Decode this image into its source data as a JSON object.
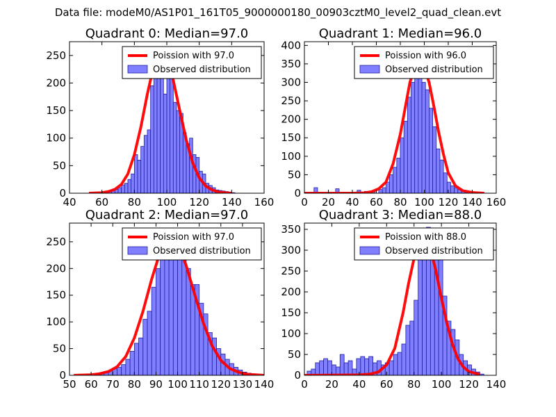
{
  "suptitle": "Data file: modeM0/AS1P01_161T05_9000000180_00903cztM0_level2_quad_clean.evt",
  "colors": {
    "poisson": "#ff0000",
    "bar_fill": "#7f7fff",
    "bar_edge": "#1f1fa0"
  },
  "chart_data": [
    {
      "type": "bar",
      "title": "Quadrant 0: Median=97.0",
      "legend": [
        "Poission with 97.0",
        "Observed distribution"
      ],
      "legend_loc": "upper right",
      "xlim": [
        40,
        160
      ],
      "ylim": [
        0,
        275
      ],
      "xticks": [
        40,
        60,
        80,
        100,
        120,
        140,
        160
      ],
      "yticks": [
        0,
        50,
        100,
        150,
        200,
        250
      ],
      "bin_width": 2,
      "bins_x": [
        60,
        62,
        64,
        66,
        68,
        70,
        72,
        74,
        76,
        78,
        80,
        82,
        84,
        86,
        88,
        90,
        92,
        94,
        96,
        98,
        100,
        102,
        104,
        106,
        108,
        110,
        112,
        114,
        116,
        118,
        120,
        122,
        124,
        126,
        128,
        130,
        132,
        134,
        136,
        138,
        140
      ],
      "bins_y": [
        2,
        2,
        4,
        6,
        7,
        10,
        15,
        18,
        25,
        35,
        70,
        60,
        85,
        105,
        115,
        195,
        230,
        250,
        225,
        180,
        245,
        220,
        165,
        150,
        145,
        110,
        90,
        100,
        70,
        65,
        40,
        35,
        18,
        14,
        10,
        6,
        5,
        4,
        3,
        2,
        1
      ],
      "poisson_mean": 97.0,
      "poisson_x": [
        52,
        60,
        64,
        68,
        72,
        76,
        80,
        84,
        88,
        92,
        96,
        100,
        104,
        108,
        112,
        116,
        120,
        124,
        128,
        132,
        136,
        140
      ],
      "poisson_y": [
        0,
        1,
        3,
        7,
        16,
        35,
        70,
        120,
        180,
        232,
        260,
        248,
        205,
        150,
        97,
        55,
        28,
        13,
        6,
        2,
        1,
        0
      ]
    },
    {
      "type": "bar",
      "title": "Quadrant 1: Median=96.0",
      "legend": [
        "Poission with 96.0",
        "Observed distribution"
      ],
      "legend_loc": "upper right",
      "xlim": [
        0,
        160
      ],
      "ylim": [
        0,
        410
      ],
      "xticks": [
        0,
        20,
        40,
        60,
        80,
        100,
        120,
        140,
        160
      ],
      "yticks": [
        0,
        50,
        100,
        150,
        200,
        250,
        300,
        350,
        400
      ],
      "bin_width": 3,
      "bins_x": [
        8,
        26,
        44,
        50,
        56,
        62,
        65,
        68,
        71,
        74,
        77,
        80,
        83,
        86,
        89,
        92,
        95,
        98,
        101,
        104,
        107,
        110,
        113,
        116,
        119,
        122,
        125,
        128,
        131,
        134,
        137
      ],
      "bins_y": [
        15,
        12,
        8,
        5,
        5,
        10,
        15,
        30,
        50,
        70,
        95,
        150,
        195,
        260,
        300,
        350,
        320,
        300,
        280,
        230,
        180,
        120,
        90,
        55,
        30,
        20,
        15,
        10,
        5,
        3,
        2
      ],
      "poisson_mean": 96.0,
      "poisson_x": [
        0,
        40,
        50,
        56,
        62,
        68,
        74,
        80,
        84,
        88,
        92,
        96,
        100,
        104,
        108,
        112,
        116,
        120,
        126,
        132,
        140,
        150
      ],
      "poisson_y": [
        0,
        0,
        1,
        4,
        12,
        30,
        80,
        160,
        230,
        300,
        340,
        355,
        340,
        300,
        235,
        165,
        105,
        55,
        20,
        7,
        2,
        0
      ]
    },
    {
      "type": "bar",
      "title": "Quadrant 2: Median=97.0",
      "legend": [
        "Poission with 97.0",
        "Observed distribution"
      ],
      "legend_loc": "upper right",
      "xlim": [
        50,
        140
      ],
      "ylim": [
        0,
        285
      ],
      "xticks": [
        50,
        60,
        70,
        80,
        90,
        100,
        110,
        120,
        130,
        140
      ],
      "yticks": [
        0,
        50,
        100,
        150,
        200,
        250
      ],
      "bin_width": 2,
      "bins_x": [
        58,
        62,
        64,
        66,
        68,
        70,
        72,
        74,
        76,
        78,
        80,
        82,
        84,
        86,
        88,
        90,
        92,
        94,
        96,
        98,
        100,
        102,
        104,
        106,
        108,
        110,
        112,
        114,
        116,
        118,
        120,
        122,
        124,
        126,
        128,
        130,
        132,
        134
      ],
      "bins_y": [
        2,
        3,
        5,
        7,
        8,
        12,
        15,
        20,
        30,
        45,
        60,
        70,
        105,
        120,
        165,
        200,
        240,
        265,
        225,
        260,
        240,
        230,
        200,
        170,
        170,
        135,
        115,
        80,
        70,
        50,
        40,
        30,
        22,
        15,
        10,
        6,
        4,
        2
      ],
      "poisson_mean": 97.0,
      "poisson_x": [
        52,
        60,
        64,
        68,
        72,
        76,
        80,
        84,
        88,
        92,
        96,
        100,
        104,
        108,
        112,
        116,
        120,
        124,
        128,
        132,
        136,
        140
      ],
      "poisson_y": [
        0,
        1,
        3,
        7,
        16,
        35,
        70,
        120,
        180,
        232,
        260,
        248,
        205,
        150,
        97,
        55,
        28,
        13,
        6,
        2,
        1,
        0
      ]
    },
    {
      "type": "bar",
      "title": "Quadrant 3: Median=88.0",
      "legend": [
        "Poission with 88.0",
        "Observed distribution"
      ],
      "legend_loc": "upper right",
      "xlim": [
        0,
        140
      ],
      "ylim": [
        0,
        365
      ],
      "xticks": [
        0,
        20,
        40,
        60,
        80,
        100,
        120,
        140
      ],
      "yticks": [
        0,
        50,
        100,
        150,
        200,
        250,
        300,
        350
      ],
      "bin_width": 3,
      "bins_x": [
        2,
        5,
        8,
        11,
        14,
        17,
        20,
        23,
        26,
        29,
        32,
        35,
        38,
        41,
        44,
        47,
        50,
        53,
        56,
        59,
        62,
        65,
        68,
        71,
        74,
        77,
        80,
        83,
        86,
        89,
        92,
        95,
        98,
        101,
        104,
        107,
        110,
        113,
        116,
        119,
        122,
        125,
        128
      ],
      "bins_y": [
        10,
        15,
        30,
        35,
        40,
        35,
        25,
        20,
        50,
        30,
        35,
        15,
        40,
        45,
        40,
        45,
        30,
        35,
        25,
        30,
        35,
        50,
        55,
        75,
        120,
        130,
        180,
        300,
        320,
        355,
        320,
        300,
        300,
        190,
        130,
        110,
        85,
        50,
        35,
        25,
        15,
        8,
        3
      ],
      "poisson_mean": 88.0,
      "poisson_x": [
        0,
        40,
        48,
        54,
        60,
        66,
        72,
        76,
        80,
        84,
        88,
        92,
        96,
        100,
        104,
        108,
        112,
        116,
        120,
        128
      ],
      "poisson_y": [
        0,
        1,
        3,
        8,
        25,
        65,
        150,
        220,
        280,
        325,
        335,
        305,
        250,
        185,
        125,
        75,
        40,
        20,
        9,
        2
      ]
    }
  ]
}
